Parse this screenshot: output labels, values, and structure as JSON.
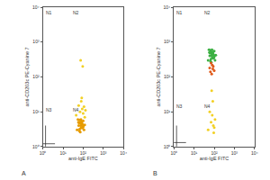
{
  "chart_data": [
    {
      "type": "scatter",
      "panel": "A",
      "log": true,
      "tick_labels": true,
      "x_label": "anti-IgE FITC",
      "y_label": "anti-CD203c PE-Cyanine 7",
      "xlim": [
        1,
        10000
      ],
      "ylim": [
        1,
        10000
      ],
      "xticks": [
        {
          "value": 1,
          "label": "10⁰"
        },
        {
          "value": 10,
          "label": "10¹"
        },
        {
          "value": 100,
          "label": "10²"
        },
        {
          "value": 1000,
          "label": "10³"
        },
        {
          "value": 10000,
          "label": "10⁴"
        }
      ],
      "yticks": [
        {
          "value": 1,
          "label": "10⁰"
        },
        {
          "value": 10,
          "label": "10¹"
        },
        {
          "value": 100,
          "label": "10²"
        },
        {
          "value": 1000,
          "label": "10³"
        },
        {
          "value": 10000,
          "label": "10⁴"
        }
      ],
      "gate": {
        "x": 23,
        "y": 16
      },
      "quadrant_labels": [
        "N1",
        "N2",
        "N3",
        "N4"
      ],
      "series": [
        {
          "color": "#e69b00",
          "x": [
            50,
            60,
            70,
            80,
            90,
            100,
            110,
            55,
            65,
            75,
            85,
            95,
            120,
            58,
            68,
            78,
            88,
            98,
            62,
            72,
            82,
            92,
            105,
            66,
            76
          ],
          "y": [
            3,
            4,
            5,
            3.5,
            4.5,
            5.5,
            3,
            6,
            2.8,
            4,
            5,
            3.8,
            4.2,
            5,
            3.2,
            6,
            4.4,
            3.6,
            4.8,
            2.6,
            5.2,
            3.4,
            4,
            5.8,
            4.6
          ]
        },
        {
          "color": "#f2d024",
          "x": [
            45,
            70,
            90,
            120,
            60,
            100,
            80,
            130,
            75,
            95,
            85,
            110
          ],
          "y": [
            8,
            10,
            12,
            7,
            15,
            9,
            20,
            11,
            300,
            200,
            25,
            14
          ]
        }
      ]
    },
    {
      "type": "scatter",
      "panel": "B",
      "log": true,
      "tick_labels": true,
      "x_label": "anti-IgE FITC",
      "y_label": "anti-CD203c PE-Cyanine 7",
      "xlim": [
        1,
        10000
      ],
      "ylim": [
        1,
        10000
      ],
      "xticks": [
        {
          "value": 1,
          "label": "10⁰"
        },
        {
          "value": 10,
          "label": "10¹"
        },
        {
          "value": 100,
          "label": "10²"
        },
        {
          "value": 1000,
          "label": "10³"
        },
        {
          "value": 10000,
          "label": "10⁴"
        }
      ],
      "yticks": [
        {
          "value": 1,
          "label": "10⁰"
        },
        {
          "value": 10,
          "label": "10¹"
        },
        {
          "value": 100,
          "label": "10²"
        },
        {
          "value": 1000,
          "label": "10³"
        },
        {
          "value": 10000,
          "label": "10⁴"
        }
      ],
      "gate": {
        "x": 23,
        "y": 20
      },
      "quadrant_labels": [
        "N1",
        "N2",
        "N3",
        "N4"
      ],
      "series": [
        {
          "color": "#3cb043",
          "x": [
            50,
            60,
            70,
            80,
            90,
            100,
            110,
            55,
            65,
            75,
            85,
            95,
            120,
            58,
            68,
            78,
            88,
            98,
            62,
            72,
            82,
            92,
            105,
            66,
            76
          ],
          "y": [
            300,
            400,
            500,
            350,
            450,
            550,
            300,
            600,
            280,
            400,
            500,
            380,
            420,
            500,
            320,
            600,
            440,
            360,
            480,
            260,
            520,
            340,
            400,
            580,
            460
          ]
        },
        {
          "color": "#e05a1a",
          "x": [
            60,
            80,
            100,
            70,
            90,
            75,
            85,
            65
          ],
          "y": [
            180,
            220,
            150,
            250,
            200,
            120,
            170,
            140
          ]
        },
        {
          "color": "#f2d024",
          "x": [
            50,
            70,
            90,
            110,
            80,
            60,
            100,
            85,
            75,
            95
          ],
          "y": [
            3,
            5,
            4,
            6,
            8,
            10,
            3.5,
            20,
            40,
            2.5
          ]
        }
      ]
    }
  ]
}
